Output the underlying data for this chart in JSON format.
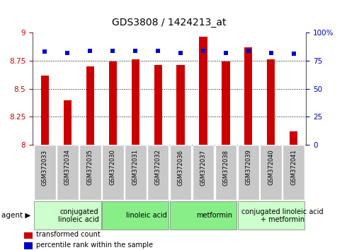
{
  "title": "GDS3808 / 1424213_at",
  "samples": [
    "GSM372033",
    "GSM372034",
    "GSM372035",
    "GSM372030",
    "GSM372031",
    "GSM372032",
    "GSM372036",
    "GSM372037",
    "GSM372038",
    "GSM372039",
    "GSM372040",
    "GSM372041"
  ],
  "transformed_count": [
    8.62,
    8.4,
    8.7,
    8.74,
    8.76,
    8.71,
    8.71,
    8.96,
    8.74,
    8.87,
    8.76,
    8.12
  ],
  "percentile_rank": [
    83,
    82,
    84,
    84,
    84,
    84,
    82,
    84,
    82,
    84,
    82,
    81
  ],
  "bar_color": "#cc0000",
  "dot_color": "#0000cc",
  "ylim_left": [
    8.0,
    9.0
  ],
  "ylim_right": [
    0,
    100
  ],
  "yticks_left": [
    8.0,
    8.25,
    8.5,
    8.75,
    9.0
  ],
  "ytick_labels_left": [
    "8",
    "8.25",
    "8.5",
    "8.75",
    "9"
  ],
  "yticks_right": [
    0,
    25,
    50,
    75,
    100
  ],
  "ytick_labels_right": [
    "0",
    "25",
    "50",
    "75",
    "100%"
  ],
  "gridlines_at": [
    8.25,
    8.5,
    8.75
  ],
  "agent_groups": [
    {
      "label": "conjugated\nlinoleic acid",
      "start": 0,
      "end": 3,
      "color": "#ccffcc"
    },
    {
      "label": "linoleic acid",
      "start": 3,
      "end": 6,
      "color": "#88ee88"
    },
    {
      "label": "metformin",
      "start": 6,
      "end": 9,
      "color": "#88ee88"
    },
    {
      "label": "conjugated linoleic acid\n+ metformin",
      "start": 9,
      "end": 12,
      "color": "#ccffcc"
    }
  ],
  "legend_items": [
    {
      "label": "transformed count",
      "color": "#cc0000"
    },
    {
      "label": "percentile rank within the sample",
      "color": "#0000cc"
    }
  ],
  "bar_width": 0.35,
  "agent_label": "agent",
  "tick_label_color_left": "#cc0000",
  "tick_label_color_right": "#0000cc",
  "sample_bg_color": "#c8c8c8",
  "title_fontsize": 10,
  "tick_fontsize": 7.5,
  "sample_fontsize": 6,
  "agent_fontsize": 7,
  "legend_fontsize": 7
}
